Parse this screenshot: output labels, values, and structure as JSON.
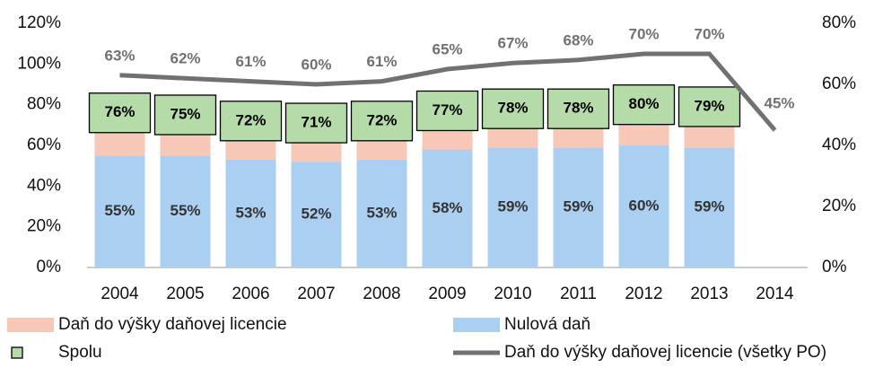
{
  "chart_data": {
    "type": "bar",
    "categories": [
      "2004",
      "2005",
      "2006",
      "2007",
      "2008",
      "2009",
      "2010",
      "2011",
      "2012",
      "2013",
      "2014"
    ],
    "series": [
      {
        "name": "Nulová daň",
        "type": "bar",
        "color": "#abcff1",
        "values": [
          55,
          55,
          53,
          52,
          53,
          58,
          59,
          59,
          60,
          59,
          null
        ],
        "value_labels": [
          "55%",
          "55%",
          "53%",
          "52%",
          "53%",
          "58%",
          "59%",
          "59%",
          "60%",
          "59%",
          null
        ]
      },
      {
        "name": "Daň do výšky daňovej licencie",
        "type": "bar",
        "color": "#f7c7b7",
        "values": [
          21,
          19,
          19,
          19,
          19,
          18,
          19,
          20,
          21,
          20,
          null
        ],
        "value_labels": [
          "21%",
          "19%",
          "19%",
          "19%",
          "19%",
          "18%",
          "19%",
          "20%",
          "21%",
          "20%",
          null
        ]
      },
      {
        "name": "Spolu",
        "type": "marker",
        "color": "#b5dba8",
        "values": [
          76,
          75,
          72,
          71,
          72,
          77,
          78,
          78,
          80,
          79,
          null
        ],
        "value_labels": [
          "76%",
          "75%",
          "72%",
          "71%",
          "72%",
          "77%",
          "78%",
          "78%",
          "80%",
          "79%",
          null
        ]
      },
      {
        "name": "Daň do výšky daňovej licencie (všetky PO)",
        "type": "line",
        "axis": "y2",
        "color": "#717171",
        "values": [
          63,
          62,
          61,
          60,
          61,
          65,
          67,
          68,
          70,
          70,
          45
        ],
        "value_labels": [
          "63%",
          "62%",
          "61%",
          "60%",
          "61%",
          "65%",
          "67%",
          "68%",
          "70%",
          "70%",
          "45%"
        ]
      }
    ],
    "ylim": [
      0,
      120
    ],
    "yticks": [
      {
        "value": 0,
        "label": "0%"
      },
      {
        "value": 20,
        "label": "20%"
      },
      {
        "value": 40,
        "label": "40%"
      },
      {
        "value": 60,
        "label": "60%"
      },
      {
        "value": 80,
        "label": "80%"
      },
      {
        "value": 100,
        "label": "100%"
      },
      {
        "value": 120,
        "label": "120%"
      }
    ],
    "y2lim": [
      0,
      80
    ],
    "y2ticks": [
      {
        "value": 0,
        "label": "0%"
      },
      {
        "value": 20,
        "label": "20%"
      },
      {
        "value": 40,
        "label": "40%"
      },
      {
        "value": 60,
        "label": "60%"
      },
      {
        "value": 80,
        "label": "80%"
      }
    ]
  }
}
